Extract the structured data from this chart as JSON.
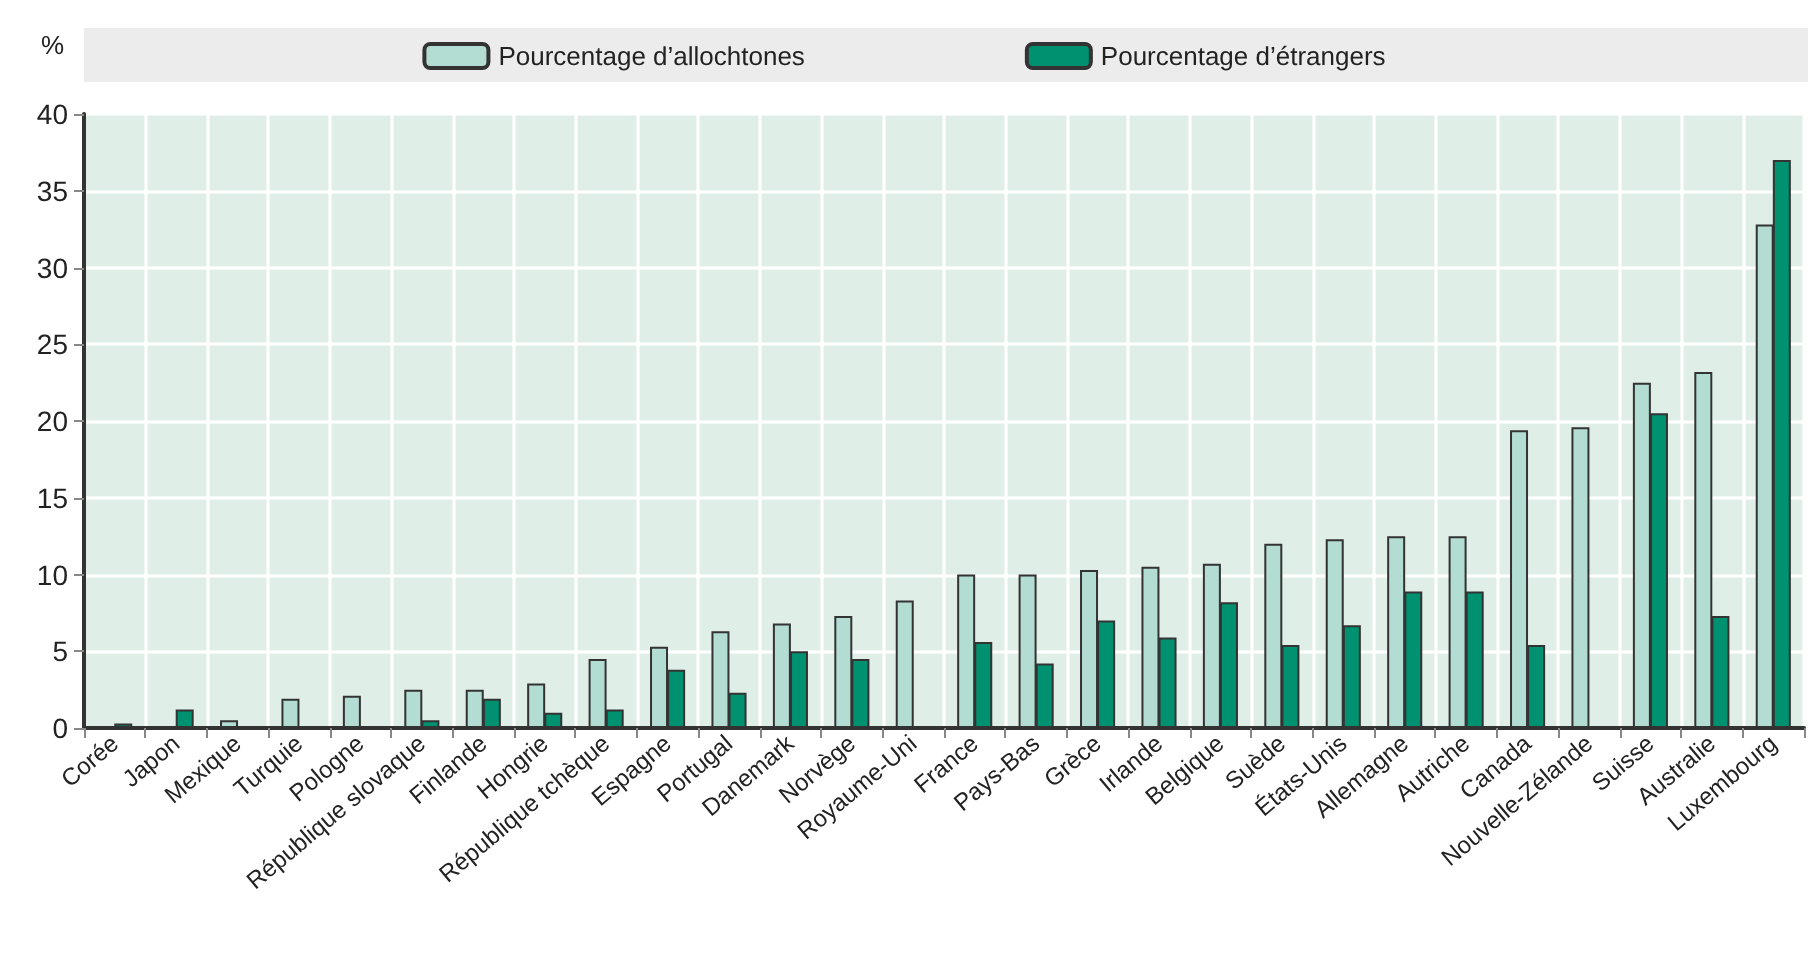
{
  "chart_data": {
    "type": "bar",
    "ylabel": "%",
    "categories": [
      "Corée",
      "Japon",
      "Mexique",
      "Turquie",
      "Pologne",
      "République slovaque",
      "Finlande",
      "Hongrie",
      "République tchèque",
      "Espagne",
      "Portugal",
      "Danemark",
      "Norvège",
      "Royaume-Uni",
      "France",
      "Pays-Bas",
      "Grèce",
      "Irlande",
      "Belgique",
      "Suède",
      "États-Unis",
      "Allemagne",
      "Autriche",
      "Canada",
      "Nouvelle-Zélande",
      "Suisse",
      "Australie",
      "Luxembourg"
    ],
    "series": [
      {
        "name": "Pourcentage d’allochtones",
        "color": "#b3dcd2",
        "values": [
          null,
          null,
          0.5,
          1.9,
          2.1,
          2.5,
          2.5,
          2.9,
          4.5,
          5.3,
          6.3,
          6.8,
          7.3,
          8.3,
          10.0,
          10.0,
          10.3,
          10.5,
          10.7,
          12.0,
          12.3,
          12.5,
          12.5,
          19.4,
          19.6,
          22.5,
          23.2,
          32.8
        ]
      },
      {
        "name": "Pourcentage d’étrangers",
        "color": "#009170",
        "values": [
          0.3,
          1.2,
          null,
          null,
          null,
          0.5,
          1.9,
          1.0,
          1.2,
          3.8,
          2.3,
          5.0,
          4.5,
          null,
          5.6,
          4.2,
          7.0,
          5.9,
          8.2,
          5.4,
          6.7,
          8.9,
          8.9,
          5.4,
          null,
          20.5,
          7.3,
          37.0
        ]
      }
    ],
    "ylim": [
      0,
      40
    ],
    "yticks": [
      0,
      5,
      10,
      15,
      20,
      25,
      30,
      35,
      40
    ],
    "grid": true,
    "legend": "top"
  }
}
